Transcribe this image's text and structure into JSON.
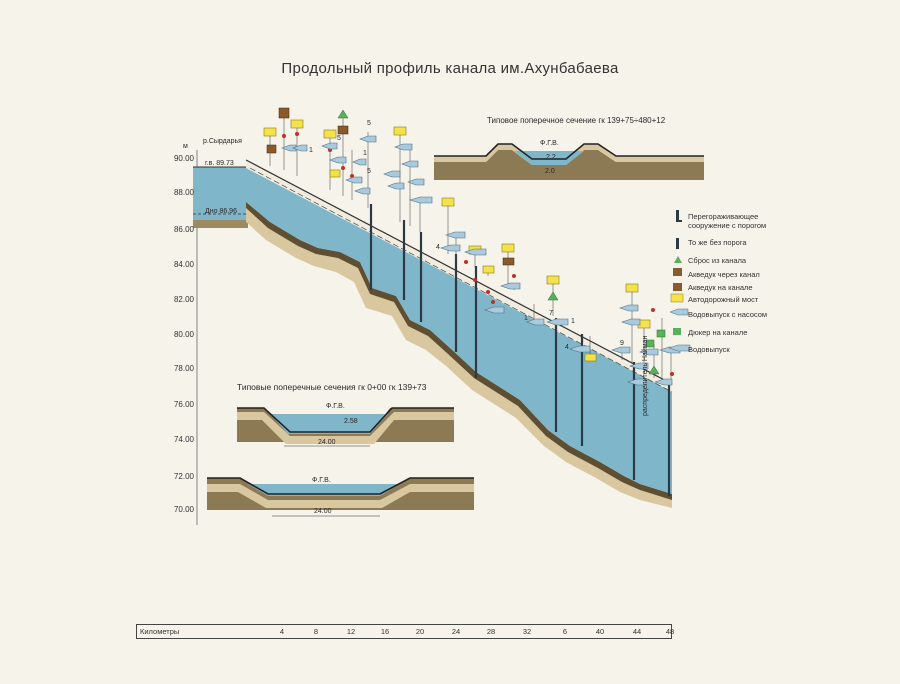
{
  "title": "Продольный профиль канала им.Ахунбабаева",
  "y_axis": {
    "unit": "м",
    "ticks": [
      "90.00",
      "88.00",
      "86.00",
      "84.00",
      "82.00",
      "80.00",
      "78.00",
      "76.00",
      "74.00",
      "72.00",
      "70.00"
    ]
  },
  "source_labels": {
    "river": "р.Сырдарья",
    "water_level": "г.в. 89.73",
    "bottom_level": "Дно 86.96"
  },
  "end_label": "распределитель Найман",
  "cross_section_top": {
    "title": "Типовое поперечное сечение  гк 139+75÷480+12",
    "fgv": "Ф.Г.В.",
    "depth": "2.2",
    "width": "2.0"
  },
  "cross_section_bottom": {
    "title": "Типовые  поперечные сечения гк 0+00 гк 139+73",
    "fgv1": "Ф.Г.В.",
    "depth1": "2.58",
    "width1": "24.00",
    "fgv2": "Ф.Г.В.",
    "width2": "24.00"
  },
  "structure_numbers": [
    "5",
    "1",
    "5",
    "1",
    "5",
    "4",
    "1",
    "7",
    "1",
    "4",
    "9"
  ],
  "legend": [
    {
      "icon": "barrier-icon",
      "label": "Перегораживающее\nсооружение с порогом"
    },
    {
      "icon": "barrier-no-sill-icon",
      "label": "То же без порога"
    },
    {
      "icon": "spillway-icon",
      "label": "Сброс из канала"
    },
    {
      "icon": "aqueduct-over-icon",
      "label": "Акведук через канал"
    },
    {
      "icon": "aqueduct-on-icon",
      "label": "Акведук на канале"
    },
    {
      "icon": "road-bridge-icon",
      "label": "Автодорожный мост"
    },
    {
      "icon": "pump-outlet-icon",
      "label": "Водовыпуск с насосом"
    },
    {
      "icon": "culvert-icon",
      "label": "Дюкер на канале"
    },
    {
      "icon": "outlet-icon",
      "label": "Водовыпуск"
    }
  ],
  "km_scale": {
    "label": "Километры",
    "ticks": [
      "4",
      "8",
      "12",
      "16",
      "20",
      "24",
      "28",
      "32",
      "6",
      "40",
      "44",
      "48"
    ]
  },
  "colors": {
    "water": "#7fb6c9",
    "soil": "#8c7a55",
    "soil_light": "#d9c7a0",
    "bridge": "#f4e24a",
    "spillway": "#58b25a",
    "aqueduct": "#8a5a2c"
  }
}
